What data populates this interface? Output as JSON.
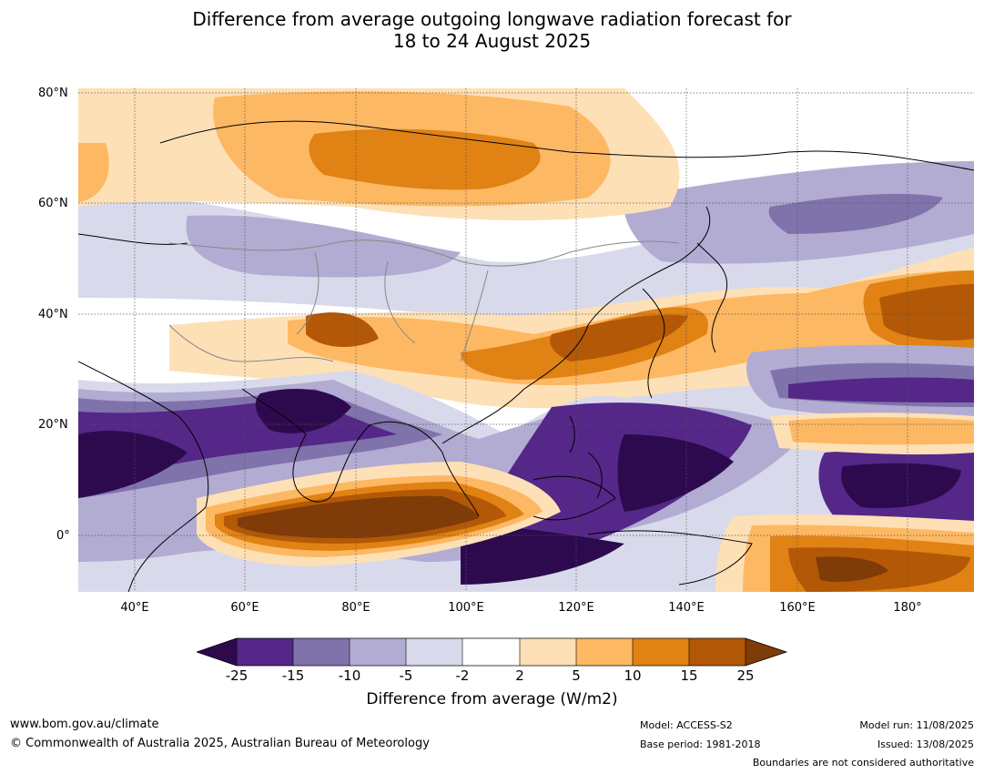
{
  "title": {
    "line1": "Difference from average outgoing longwave radiation forecast for",
    "line2": "18 to 24 August 2025"
  },
  "map": {
    "lat_labels": [
      "80°N",
      "60°N",
      "40°N",
      "20°N",
      "0°"
    ],
    "lon_labels": [
      "40°E",
      "60°E",
      "80°E",
      "100°E",
      "120°E",
      "140°E",
      "160°E",
      "180°"
    ]
  },
  "colorbar": {
    "ticks": [
      "-25",
      "-15",
      "-10",
      "-5",
      "-2",
      "2",
      "5",
      "10",
      "15",
      "25"
    ],
    "colors": [
      "#2d0a4e",
      "#542788",
      "#8073ac",
      "#b2abd2",
      "#d8daeb",
      "#ffffff",
      "#fee0b6",
      "#fdb863",
      "#e08214",
      "#b35806",
      "#7f3b08"
    ],
    "label": "Difference from average (W/m2)"
  },
  "footer": {
    "website": "www.bom.gov.au/climate",
    "copyright": "© Commonwealth of Australia 2025, Australian Bureau of Meteorology",
    "model": "Model: ACCESS-S2",
    "base_period": "Base period: 1981-2018",
    "model_run": "Model run: 11/08/2025",
    "issued": "Issued: 13/08/2025",
    "boundaries": "Boundaries are not considered authoritative"
  }
}
